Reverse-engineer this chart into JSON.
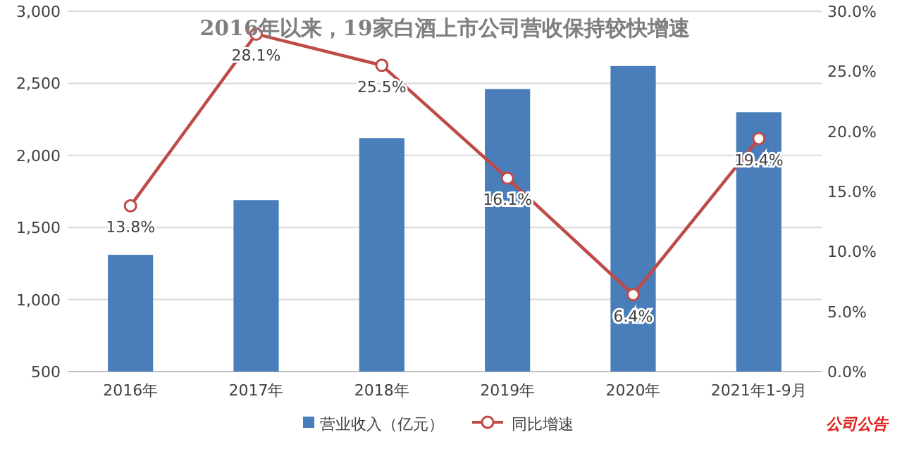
{
  "chart_data": {
    "type": "bar",
    "title": "2016年以来，19家白酒上市公司营收保持较快增速",
    "categories": [
      "2016年",
      "2017年",
      "2018年",
      "2019年",
      "2020年",
      "2021年1-9月"
    ],
    "series": [
      {
        "name": "营业收入（亿元）",
        "color": "#4a7ebb",
        "values": [
          1310,
          1690,
          2120,
          2460,
          2620,
          2300
        ]
      },
      {
        "name": "同比增速",
        "type": "line",
        "axis": "y2",
        "color": "#be4b48",
        "values": [
          13.8,
          28.1,
          25.5,
          16.1,
          6.4,
          19.4
        ],
        "value_labels": [
          "13.8%",
          "28.1%",
          "25.5%",
          "16.1%",
          "6.4%",
          "19.4%"
        ]
      }
    ],
    "ylim": [
      500,
      3000
    ],
    "yticks": [
      {
        "value": 500,
        "label": "500"
      },
      {
        "value": 1000,
        "label": "1,000"
      },
      {
        "value": 1500,
        "label": "1,500"
      },
      {
        "value": 2000,
        "label": "2,000"
      },
      {
        "value": 2500,
        "label": "2,500"
      },
      {
        "value": 3000,
        "label": "3,000"
      }
    ],
    "y2lim": [
      0,
      30
    ],
    "y2ticks": [
      {
        "value": 0,
        "label": "0.0%"
      },
      {
        "value": 5,
        "label": "5.0%"
      },
      {
        "value": 10,
        "label": "10.0%"
      },
      {
        "value": 15,
        "label": "15.0%"
      },
      {
        "value": 20,
        "label": "20.0%"
      },
      {
        "value": 25,
        "label": "25.0%"
      },
      {
        "value": 30,
        "label": "30.0%"
      }
    ],
    "grid": "y",
    "legend": "bottom",
    "marker": "circle",
    "line_style": "solid",
    "annotations": [
      "公司公告"
    ]
  }
}
